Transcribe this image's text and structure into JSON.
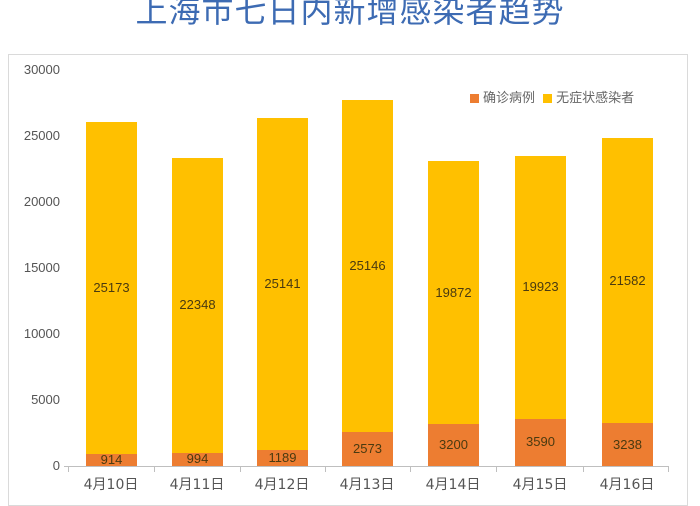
{
  "chart_data": {
    "type": "bar",
    "stacked": true,
    "title": "上海市七日内新增感染者趋势",
    "xlabel": "",
    "ylabel": "",
    "ylim": [
      0,
      30000
    ],
    "yticks": [
      "0",
      "5000",
      "10000",
      "15000",
      "20000",
      "25000",
      "30000"
    ],
    "grid": false,
    "legend_position": "top-right",
    "categories": [
      "4月10日",
      "4月11日",
      "4月12日",
      "4月13日",
      "4月14日",
      "4月15日",
      "4月16日"
    ],
    "series": [
      {
        "name": "确诊病例",
        "color": "#ed7d31",
        "values": [
          914,
          994,
          1189,
          2573,
          3200,
          3590,
          3238
        ]
      },
      {
        "name": "无症状感染者",
        "color": "#ffc000",
        "values": [
          25173,
          22348,
          25141,
          25146,
          19872,
          19923,
          21582
        ]
      }
    ]
  },
  "legend": {
    "items": [
      {
        "label": "确诊病例",
        "color": "#ed7d31"
      },
      {
        "label": "无症状感染者",
        "color": "#ffc000"
      }
    ]
  }
}
